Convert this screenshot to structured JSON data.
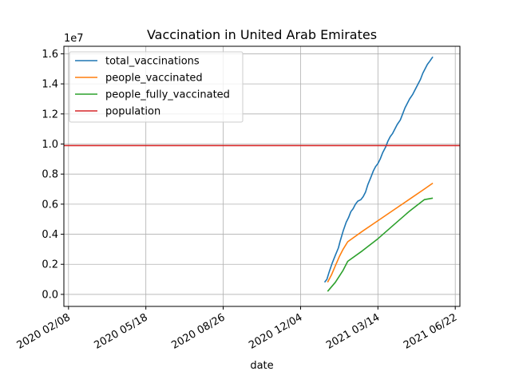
{
  "chart_data": {
    "type": "line",
    "title": "Vaccination in United Arab Emirates",
    "xlabel": "date",
    "ylabel": "",
    "y_scale_label": "1e7",
    "y_multiplier": 10000000,
    "x_range_days": [
      -6,
      506
    ],
    "x_origin_date": "2020-02-08",
    "ylim": [
      -0.08,
      1.65
    ],
    "grid": true,
    "legend_position": "upper-left",
    "x_ticks": [
      {
        "day": 0,
        "label": "2020 02/08"
      },
      {
        "day": 100,
        "label": "2020 05/18"
      },
      {
        "day": 200,
        "label": "2020 08/26"
      },
      {
        "day": 300,
        "label": "2020 12/04"
      },
      {
        "day": 400,
        "label": "2021 03/14"
      },
      {
        "day": 500,
        "label": "2021 06/22"
      }
    ],
    "y_ticks": [
      {
        "value": 0.0,
        "label": "0.0"
      },
      {
        "value": 0.2,
        "label": "0.2"
      },
      {
        "value": 0.4,
        "label": "0.4"
      },
      {
        "value": 0.6,
        "label": "0.6"
      },
      {
        "value": 0.8,
        "label": "0.8"
      },
      {
        "value": 1.0,
        "label": "1.0"
      },
      {
        "value": 1.2,
        "label": "1.2"
      },
      {
        "value": 1.4,
        "label": "1.4"
      },
      {
        "value": 1.6,
        "label": "1.6"
      }
    ],
    "series": [
      {
        "name": "total_vaccinations",
        "color": "#1f77b4",
        "points": [
          [
            331,
            0.08
          ],
          [
            334,
            0.1
          ],
          [
            337,
            0.15
          ],
          [
            341,
            0.21
          ],
          [
            345,
            0.26
          ],
          [
            349,
            0.31
          ],
          [
            351,
            0.35
          ],
          [
            355,
            0.42
          ],
          [
            359,
            0.48
          ],
          [
            362,
            0.51
          ],
          [
            365,
            0.55
          ],
          [
            368,
            0.57
          ],
          [
            371,
            0.6
          ],
          [
            374,
            0.62
          ],
          [
            378,
            0.63
          ],
          [
            381,
            0.65
          ],
          [
            384,
            0.68
          ],
          [
            387,
            0.73
          ],
          [
            391,
            0.78
          ],
          [
            394,
            0.82
          ],
          [
            397,
            0.85
          ],
          [
            400,
            0.87
          ],
          [
            403,
            0.9
          ],
          [
            406,
            0.94
          ],
          [
            410,
            0.98
          ],
          [
            413,
            1.02
          ],
          [
            416,
            1.05
          ],
          [
            419,
            1.07
          ],
          [
            422,
            1.1
          ],
          [
            425,
            1.13
          ],
          [
            429,
            1.16
          ],
          [
            432,
            1.2
          ],
          [
            435,
            1.24
          ],
          [
            438,
            1.27
          ],
          [
            441,
            1.3
          ],
          [
            445,
            1.33
          ],
          [
            448,
            1.36
          ],
          [
            451,
            1.39
          ],
          [
            455,
            1.43
          ],
          [
            458,
            1.47
          ],
          [
            461,
            1.5
          ],
          [
            464,
            1.53
          ],
          [
            467,
            1.55
          ],
          [
            471,
            1.58
          ]
        ]
      },
      {
        "name": "people_vaccinated",
        "color": "#ff7f0e",
        "points": [
          [
            335,
            0.08
          ],
          [
            340,
            0.13
          ],
          [
            345,
            0.19
          ],
          [
            350,
            0.25
          ],
          [
            355,
            0.3
          ],
          [
            361,
            0.35
          ],
          [
            380,
            0.42
          ],
          [
            400,
            0.49
          ],
          [
            420,
            0.56
          ],
          [
            440,
            0.63
          ],
          [
            460,
            0.7
          ],
          [
            471,
            0.74
          ]
        ]
      },
      {
        "name": "people_fully_vaccinated",
        "color": "#2ca02c",
        "points": [
          [
            335,
            0.02
          ],
          [
            345,
            0.08
          ],
          [
            355,
            0.16
          ],
          [
            361,
            0.22
          ],
          [
            380,
            0.29
          ],
          [
            400,
            0.37
          ],
          [
            420,
            0.46
          ],
          [
            440,
            0.55
          ],
          [
            460,
            0.63
          ],
          [
            471,
            0.64
          ]
        ]
      },
      {
        "name": "population",
        "color": "#d62728",
        "points": [
          [
            -6,
            0.99
          ],
          [
            506,
            0.99
          ]
        ]
      }
    ]
  }
}
